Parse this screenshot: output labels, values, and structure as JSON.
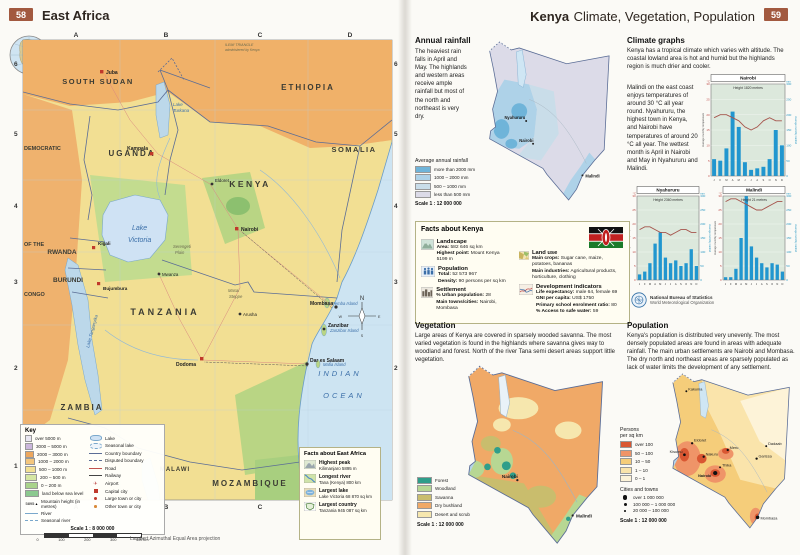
{
  "left_page": {
    "page_number": "58",
    "title": "East Africa",
    "map": {
      "grid_letters": [
        "A",
        "B",
        "C",
        "D"
      ],
      "grid_numbers": [
        "6",
        "5",
        "4",
        "3",
        "2",
        "1"
      ],
      "countries": {
        "south_sudan": "SOUTH SUDAN",
        "ethiopia": "ETHIOPIA",
        "somalia": "SOMALIA",
        "uganda": "UGANDA",
        "kenya": "KENYA",
        "drc1": "DEMOCRATIC",
        "drc2": "OF THE",
        "drc3": "CONGO",
        "rwanda": "RWANDA",
        "burundi": "BURUNDI",
        "tanzania": "TANZANIA",
        "zambia": "ZAMBIA",
        "malawi": "MALAWI",
        "mozambique": "MOZAMBIQUE"
      },
      "water": {
        "lake_victoria_1": "Lake",
        "lake_victoria_2": "Victoria",
        "lake_turkana_1": "Lake",
        "lake_turkana_2": "Turkana",
        "lake_tanganyika": "Lake Tanganyika",
        "indian_1": "INDIAN",
        "indian_2": "OCEAN"
      },
      "regions": {
        "ilemi_1": "ILEMI TRIANGLE",
        "ilemi_2": "administered by Kenya",
        "masai_1": "Masai",
        "masai_2": "Steppe",
        "serengeti_1": "Serengeti",
        "serengeti_2": "Plain",
        "pemba": "Pemba Island",
        "zanzibar_island": "Zanzibar Island",
        "mafia": "Mafia Island"
      },
      "cities": {
        "juba": "Juba",
        "kampala": "Kampala",
        "eldoret": "Eldoret",
        "nairobi": "Nairobi",
        "kigali": "Kigali",
        "bujumbura": "Bujumbura",
        "mwanza": "Mwanza",
        "arusha": "Arusha",
        "dodoma": "Dodoma",
        "dar": "Dar es Salaam",
        "zanzibar": "Zanzibar",
        "mombasa": "Mombasa"
      },
      "compass_n": "N",
      "compass_s": "S",
      "compass_e": "E",
      "compass_w": "W"
    },
    "key": {
      "title": "Key",
      "elevation": [
        {
          "label": "over 5000 m",
          "color": "#e9e6f2"
        },
        {
          "label": "3000 – 5000 m",
          "color": "#cbb7dc"
        },
        {
          "label": "2000 – 3000 m",
          "color": "#eda75e"
        },
        {
          "label": "1000 – 2000 m",
          "color": "#f4c67d"
        },
        {
          "label": "500 – 1000 m",
          "color": "#f2e094"
        },
        {
          "label": "200 – 500 m",
          "color": "#d5e6a3"
        },
        {
          "label": "0 – 200 m",
          "color": "#a9d38b"
        },
        {
          "label": "land below sea level",
          "color": "#8cc98f"
        }
      ],
      "mountain_value": "5895",
      "mountain_label": "Mountain height (in metres)",
      "river": "River",
      "seasonal_river": "Seasonal river",
      "symbols": [
        {
          "label": "Lake"
        },
        {
          "label": "Seasonal lake"
        },
        {
          "label": "Country boundary"
        },
        {
          "label": "Disputed boundary"
        },
        {
          "label": "Road"
        },
        {
          "label": "Railway"
        },
        {
          "label": "Airport"
        },
        {
          "label": "Capital city"
        },
        {
          "label": "Large town or city"
        },
        {
          "label": "Other town or city"
        }
      ],
      "scale_label": "Scale 1 : 8 000 000",
      "scale_ticks": [
        "0",
        "100",
        "200",
        "300",
        "400 km"
      ]
    },
    "facts_box": {
      "title": "Facts about East Africa",
      "items": [
        {
          "label": "Highest peak",
          "value": "Kilimanjaro 5895 m"
        },
        {
          "label": "Longest river",
          "value": "Tana (Kenya) 800 km"
        },
        {
          "label": "Largest lake",
          "value": "Lake Victoria 68 870 sq km"
        },
        {
          "label": "Largest country",
          "value": "Tanzania 945 087 sq km"
        }
      ]
    },
    "projection_note": "Lambert Azimuthal Equal Area projection"
  },
  "right_page": {
    "page_number": "59",
    "title_bold": "Kenya",
    "title_rest": "Climate, Vegetation, Population",
    "rainfall": {
      "heading": "Annual rainfall",
      "body": "The heaviest rain falls in April and May. The highlands and western areas receive ample rainfall but most of the north and northeast is very dry.",
      "legend_title": "Average annual rainfall",
      "legend": [
        {
          "label": "more than 2000 mm",
          "color": "#6fb4d9"
        },
        {
          "label": "1000 – 2000 mm",
          "color": "#aed2e8"
        },
        {
          "label": "500 – 1000 mm",
          "color": "#c9dde9"
        },
        {
          "label": "less than 500 mm",
          "color": "#dcdbe8"
        }
      ],
      "scale": "Scale 1 : 12 000 000",
      "labels": {
        "nyahururu": "Nyahururu",
        "nairobi": "Nairobi",
        "malindi": "Malindi"
      }
    },
    "climate": {
      "heading": "Climate graphs",
      "intro": "Kenya has a tropical climate which varies with altitude. The coastal lowland area is hot and humid but the highlands region is much drier and cooler.",
      "body": "Malindi on the east coast enjoys temperatures of around 30 °C all year round. Nyahururu, the highest town in Kenya, and Nairobi have temperatures of around 20 °C all year. The wettest month is April in Nairobi and May in Nyahururu and Malindi."
    },
    "agency": {
      "line1": "National Bureau of Statistics",
      "line2": "World Meteorological Organization"
    },
    "facts": {
      "title": "Facts about Kenya",
      "landscape": {
        "heading": "Landscape",
        "l1b": "Area:",
        "l1": "582 646 sq km",
        "l2b": "Highest point:",
        "l2": "Mount Kenya 5199 m"
      },
      "population": {
        "heading": "Population",
        "l1b": "Total:",
        "l1": "52 573 967",
        "l2b": "Density:",
        "l2": "90 persons per sq km"
      },
      "settlement": {
        "heading": "Settlement",
        "l1b": "% Urban population:",
        "l1": "28",
        "l2b": "Main towns/cities:",
        "l2": "Nairobi, Mombasa"
      },
      "landuse": {
        "heading": "Land use",
        "l1b": "Main crops:",
        "l1": "Sugar cane, maize, potatoes, bananas",
        "l2b": "Main industries:",
        "l2": "Agricultural products, horticulture, clothing"
      },
      "development": {
        "heading": "Development indicators",
        "l1b": "Life expectancy:",
        "l1": "male 64, female 69",
        "l2b": "GNI per capita:",
        "l2": "US$ 1750",
        "l3b": "Primary school enrolment ratio:",
        "l3": "80",
        "l4b": "% Access to safe water:",
        "l4": "59"
      }
    },
    "vegetation": {
      "heading": "Vegetation",
      "body": "Large areas of Kenya are covered in sparsely wooded savanna. The most varied vegetation is found in the highlands where savanna gives way to woodland and forest. North of the river Tana semi desert areas support little vegetation.",
      "legend": [
        {
          "label": "Forest",
          "color": "#2f9e8a"
        },
        {
          "label": "Woodland",
          "color": "#b7d793"
        },
        {
          "label": "Savanna",
          "color": "#c9bd6d"
        },
        {
          "label": "Dry bushland",
          "color": "#f0a967"
        },
        {
          "label": "Desert and scrub",
          "color": "#f6e7ae"
        }
      ],
      "scale": "Scale 1 : 12 000 000",
      "labels": {
        "nairobi": "Nairobi",
        "malindi": "Malindi"
      }
    },
    "population": {
      "heading": "Population",
      "body": "Kenya's population is distributed very unevenly. The most densely populated areas are found in areas with adequate rainfall. The main urban settlements are Nairobi and Mombasa. The dry north and northeast areas are sparsely populated as lack of water limits the development of any settlement.",
      "density_title_1": "Persons",
      "density_title_2": "per sq km",
      "density_legend": [
        {
          "label": "over 100",
          "color": "#d95732"
        },
        {
          "label": "50 – 100",
          "color": "#ef9468"
        },
        {
          "label": "10 – 50",
          "color": "#f5cd7a"
        },
        {
          "label": "1 – 10",
          "color": "#fae4ab"
        },
        {
          "label": "0 – 1",
          "color": "#fdf3d8"
        }
      ],
      "cities_title": "Cities and towns",
      "cities_legend": [
        {
          "label": "over 1 000 000"
        },
        {
          "label": "100 000 – 1 000 000"
        },
        {
          "label": "20 000 – 100 000"
        }
      ],
      "scale": "Scale 1 : 12 000 000",
      "labels": {
        "kakuma": "Kakuma",
        "eldoret": "Eldoret",
        "kisumu": "Kisumu",
        "nakuru": "Nakuru",
        "meru": "Meru",
        "nairobi": "Nairobi",
        "thika": "Thika",
        "garissa": "Garissa",
        "dadaab": "Dadaab",
        "mombasa": "Mombasa"
      }
    }
  },
  "chart_data": [
    {
      "type": "bar-line",
      "title": "Nairobi",
      "subtitle": "Height 1820 metres",
      "x": [
        "J",
        "F",
        "M",
        "A",
        "M",
        "J",
        "J",
        "A",
        "S",
        "O",
        "N",
        "D"
      ],
      "series": [
        {
          "name": "Average monthly rainfall",
          "type": "bar",
          "values": [
            55,
            50,
            90,
            210,
            160,
            45,
            20,
            25,
            30,
            55,
            150,
            100
          ]
        },
        {
          "name": "Average monthly temperature",
          "type": "line",
          "values": [
            19,
            20,
            20,
            19,
            18,
            16,
            15,
            16,
            18,
            19,
            18,
            18
          ]
        }
      ],
      "y_left": {
        "label": "Average monthly temperature",
        "unit": "°C",
        "range": [
          0,
          30
        ],
        "ticks": [
          0,
          5,
          10,
          15,
          20,
          25,
          30
        ]
      },
      "y_right": {
        "label": "Average monthly rainfall",
        "unit": "mm",
        "range": [
          0,
          300
        ],
        "ticks": [
          0,
          50,
          100,
          150,
          200,
          250,
          300
        ]
      }
    },
    {
      "type": "bar-line",
      "title": "Nyahururu",
      "subtitle": "Height 2360 metres",
      "x": [
        "J",
        "F",
        "M",
        "A",
        "M",
        "J",
        "J",
        "A",
        "S",
        "O",
        "N",
        "D"
      ],
      "series": [
        {
          "name": "Average monthly rainfall",
          "type": "bar",
          "values": [
            20,
            30,
            60,
            130,
            170,
            80,
            60,
            70,
            50,
            60,
            110,
            50
          ]
        },
        {
          "name": "Average monthly temperature",
          "type": "line",
          "values": [
            18,
            19,
            19,
            18,
            17,
            17,
            16,
            17,
            18,
            18,
            17,
            17
          ]
        }
      ],
      "y_left": {
        "label": "Average monthly temperature",
        "unit": "°C",
        "range": [
          0,
          30
        ],
        "ticks": [
          0,
          5,
          10,
          15,
          20,
          25,
          30
        ]
      },
      "y_right": {
        "label": "Average monthly rainfall",
        "unit": "mm",
        "range": [
          0,
          300
        ],
        "ticks": [
          0,
          50,
          100,
          150,
          200,
          250,
          300
        ]
      }
    },
    {
      "type": "bar-line",
      "title": "Malindi",
      "subtitle": "Height 21 metres",
      "x": [
        "J",
        "F",
        "M",
        "A",
        "M",
        "J",
        "J",
        "A",
        "S",
        "O",
        "N",
        "D"
      ],
      "series": [
        {
          "name": "Average monthly rainfall",
          "type": "bar",
          "values": [
            10,
            10,
            40,
            150,
            300,
            120,
            80,
            60,
            45,
            60,
            55,
            30
          ]
        },
        {
          "name": "Average monthly temperature",
          "type": "line",
          "values": [
            28,
            29,
            29,
            28,
            27,
            26,
            25,
            25,
            26,
            27,
            28,
            28
          ]
        }
      ],
      "y_left": {
        "label": "Average monthly temperature",
        "unit": "°C",
        "range": [
          0,
          30
        ],
        "ticks": [
          0,
          5,
          10,
          15,
          20,
          25,
          30
        ]
      },
      "y_right": {
        "label": "Average monthly rainfall",
        "unit": "mm",
        "range": [
          0,
          300
        ],
        "ticks": [
          0,
          50,
          100,
          150,
          200,
          250,
          300
        ]
      }
    }
  ]
}
